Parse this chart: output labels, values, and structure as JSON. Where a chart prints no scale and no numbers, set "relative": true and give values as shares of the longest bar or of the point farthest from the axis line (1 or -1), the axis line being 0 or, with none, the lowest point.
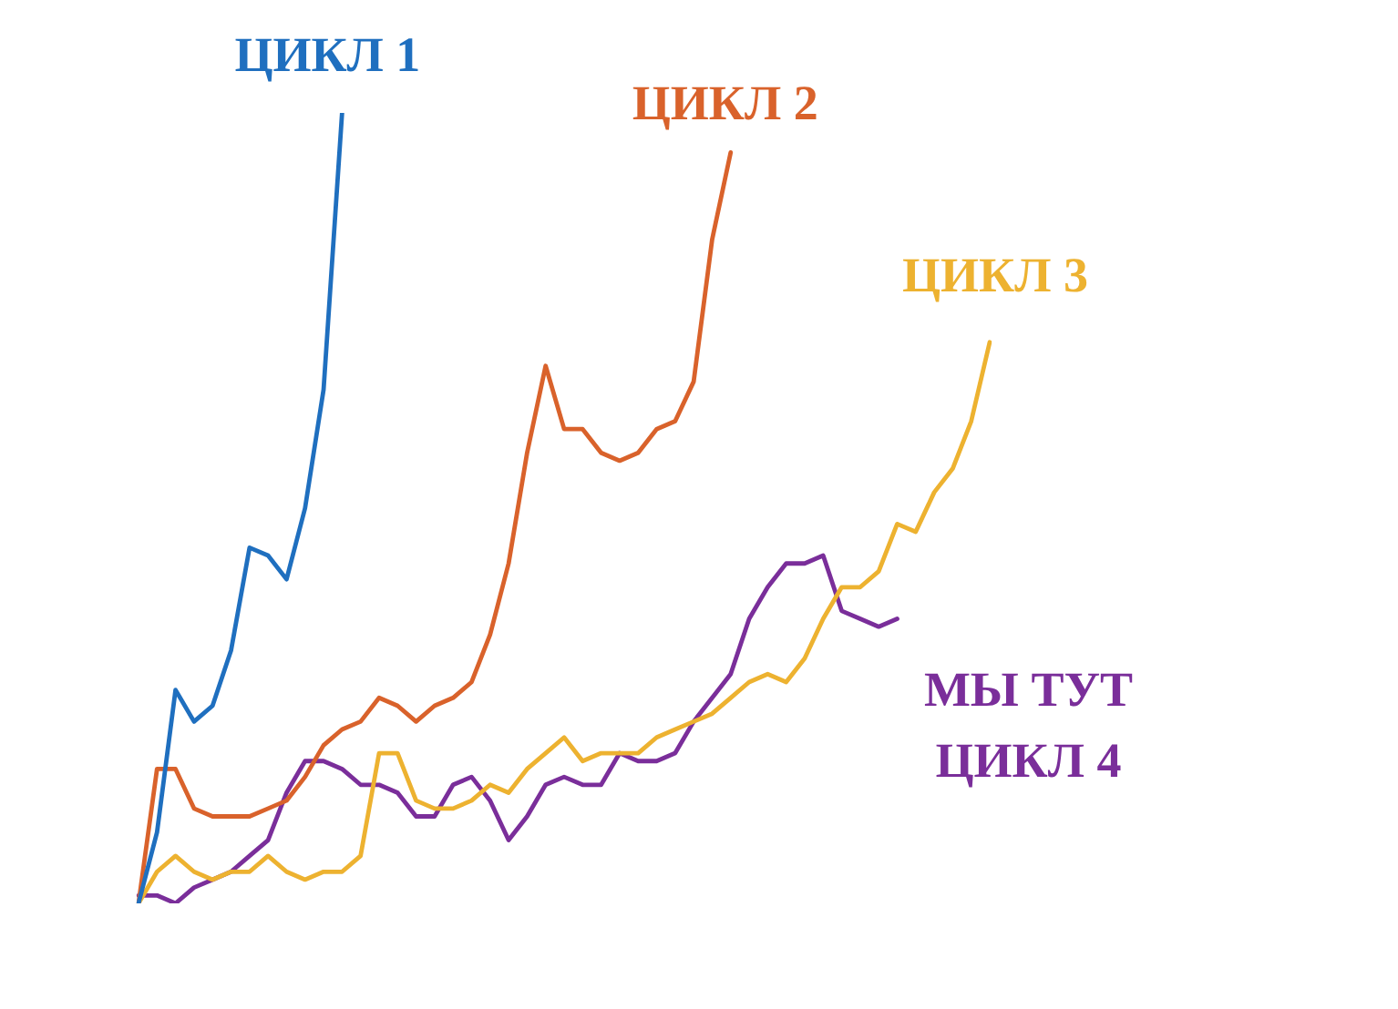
{
  "chart_data": {
    "type": "line",
    "relative": true,
    "legend": false,
    "grid": false,
    "marker": "none",
    "line_style": "solid",
    "categories": [
      null,
      null,
      null,
      null,
      null,
      null,
      null,
      null,
      null,
      null,
      null,
      null,
      null,
      null,
      null,
      null,
      null,
      null,
      null,
      null,
      null,
      null,
      null,
      null,
      null,
      null,
      null,
      null,
      null,
      null,
      null,
      null,
      null,
      null,
      null,
      null,
      null,
      null,
      null,
      null,
      null,
      null,
      null,
      null,
      null,
      null,
      null
    ],
    "annotations": [
      "МЫ ТУТ"
    ],
    "series": [
      {
        "name": "ЦИКЛ 1",
        "color": "#1f6fbf",
        "values": [
          0,
          0.09,
          0.27,
          0.23,
          0.25,
          0.32,
          0.45,
          0.44,
          0.41,
          0.5,
          0.65,
          1,
          null,
          null,
          null,
          null,
          null,
          null,
          null,
          null,
          null,
          null,
          null,
          null,
          null,
          null,
          null,
          null,
          null,
          null,
          null,
          null,
          null,
          null,
          null,
          null,
          null,
          null,
          null,
          null,
          null,
          null,
          null,
          null,
          null,
          null,
          null
        ]
      },
      {
        "name": "ЦИКЛ 2",
        "color": "#d9622b",
        "values": [
          0,
          0.17,
          0.17,
          0.12,
          0.11,
          0.11,
          0.11,
          0.12,
          0.13,
          0.16,
          0.2,
          0.22,
          0.23,
          0.26,
          0.25,
          0.23,
          0.25,
          0.26,
          0.28,
          0.34,
          0.43,
          0.57,
          0.68,
          0.6,
          0.6,
          0.57,
          0.56,
          0.57,
          0.6,
          0.61,
          0.66,
          0.84,
          0.95,
          null,
          null,
          null,
          null,
          null,
          null,
          null,
          null,
          null,
          null,
          null,
          null,
          null,
          null
        ]
      },
      {
        "name": "ЦИКЛ 3",
        "color": "#edb230",
        "values": [
          0,
          0.04,
          0.06,
          0.04,
          0.03,
          0.04,
          0.04,
          0.06,
          0.04,
          0.03,
          0.04,
          0.04,
          0.06,
          0.19,
          0.19,
          0.13,
          0.12,
          0.12,
          0.13,
          0.15,
          0.14,
          0.17,
          0.19,
          0.21,
          0.18,
          0.19,
          0.19,
          0.19,
          0.21,
          0.22,
          0.23,
          0.24,
          0.26,
          0.28,
          0.29,
          0.28,
          0.31,
          0.36,
          0.4,
          0.4,
          0.42,
          0.48,
          0.47,
          0.52,
          0.55,
          0.61,
          0.71
        ]
      },
      {
        "name": "ЦИКЛ 4",
        "color": "#7a2e9a",
        "values": [
          0.01,
          0.01,
          0,
          0.02,
          0.03,
          0.04,
          0.06,
          0.08,
          0.14,
          0.18,
          0.18,
          0.17,
          0.15,
          0.15,
          0.14,
          0.11,
          0.11,
          0.15,
          0.16,
          0.13,
          0.08,
          0.11,
          0.15,
          0.16,
          0.15,
          0.15,
          0.19,
          0.18,
          0.18,
          0.19,
          0.23,
          0.26,
          0.29,
          0.36,
          0.4,
          0.43,
          0.43,
          0.44,
          0.37,
          0.36,
          0.35,
          0.36,
          null,
          null,
          null,
          null,
          null
        ]
      }
    ]
  }
}
